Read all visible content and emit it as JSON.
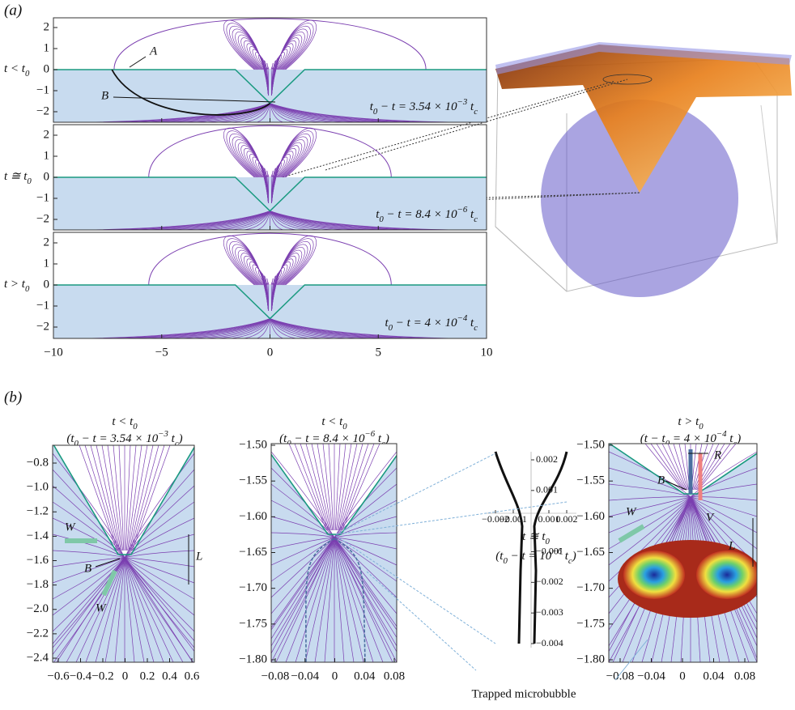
{
  "panel_a": {
    "label": "(a)",
    "rows": [
      {
        "condition": [
          "t < t",
          "0"
        ],
        "time": [
          "t",
          "0",
          " − t = 3.54 × 10",
          "−3",
          " t",
          "c"
        ]
      },
      {
        "condition": [
          "t ≅ t",
          "0"
        ],
        "time": [
          "t",
          "0",
          " − t = 8.4 × 10",
          "−6",
          " t",
          "c"
        ]
      },
      {
        "condition": [
          "t > t",
          "0"
        ],
        "time": [
          "t",
          "0",
          " − t = 4 × 10",
          "−4",
          " t",
          "c"
        ]
      }
    ],
    "yticks": [
      2,
      1,
      0,
      {
        "value": -1,
        "label": "−1"
      },
      {
        "value": -2,
        "label": "−2"
      }
    ],
    "xticks": [
      {
        "value": -10,
        "label": "−10"
      },
      {
        "value": -5,
        "label": "−5"
      },
      0,
      5,
      10
    ],
    "annotations": [
      "A",
      "B"
    ]
  },
  "panel_b": {
    "label": "(b)",
    "plots": [
      {
        "title": [
          "t < t",
          "0"
        ],
        "subtitle": [
          "(t",
          "0",
          " − t = 3.54 × 10",
          "−3",
          " t",
          "c",
          ")"
        ],
        "yticks": [
          {
            "value": -0.8,
            "label": "−0.8"
          },
          {
            "value": -1.0,
            "label": "−1.0"
          },
          {
            "value": -1.2,
            "label": "−1.2"
          },
          {
            "value": -1.4,
            "label": "−1.4"
          },
          {
            "value": -1.6,
            "label": "−1.6"
          },
          {
            "value": -1.8,
            "label": "−1.8"
          },
          {
            "value": -2.0,
            "label": "−2.0"
          },
          {
            "value": -2.2,
            "label": "−2.2"
          },
          {
            "value": -2.4,
            "label": "−2.4"
          }
        ],
        "xticks": [
          {
            "value": -0.6,
            "label": "−0.6"
          },
          {
            "value": -0.4,
            "label": "−0.4"
          },
          {
            "value": -0.2,
            "label": "−0.2"
          },
          0,
          0.2,
          0.4,
          0.6
        ],
        "annotations": [
          "W",
          "W",
          "B",
          "L"
        ]
      },
      {
        "title": [
          "t < t",
          "0"
        ],
        "subtitle": [
          "(t",
          "0",
          " − t = 8.4 × 10",
          "−6",
          " t",
          "c",
          ")"
        ],
        "yticks": [
          {
            "value": -1.5,
            "label": "−1.50"
          },
          {
            "value": -1.55,
            "label": "−1.55"
          },
          {
            "value": -1.6,
            "label": "−1.60"
          },
          {
            "value": -1.65,
            "label": "−1.65"
          },
          {
            "value": -1.7,
            "label": "−1.70"
          },
          {
            "value": -1.75,
            "label": "−1.75"
          },
          {
            "value": -1.8,
            "label": "−1.80"
          }
        ],
        "xticks": [
          {
            "value": -0.08,
            "label": "−0.08"
          },
          {
            "value": -0.04,
            "label": "−0.04"
          },
          0,
          0.04,
          0.08
        ]
      },
      {
        "title": [
          "t ≅ t",
          "0"
        ],
        "subtitle": [
          "(t",
          "0",
          " − t = 10",
          "−6",
          " t",
          "c",
          ")"
        ],
        "yticks": [
          0.002,
          0.001,
          {
            "value": -0.001,
            "label": "−0.001"
          },
          {
            "value": -0.002,
            "label": "−0.002"
          },
          {
            "value": -0.003,
            "label": "−0.003"
          },
          {
            "value": -0.004,
            "label": "−0.004"
          }
        ],
        "xticks": [
          {
            "value": -0.002,
            "label": "−0.002"
          },
          {
            "value": -0.001,
            "label": "−0.001"
          },
          0.001,
          0.002
        ]
      },
      {
        "title": [
          "t > t",
          "0"
        ],
        "subtitle": [
          "(t − t",
          "0",
          " = 4 × 10",
          "−4",
          " t",
          "c",
          ")"
        ],
        "yticks": [
          {
            "value": -1.5,
            "label": "−1.50"
          },
          {
            "value": -1.55,
            "label": "−1.55"
          },
          {
            "value": -1.6,
            "label": "−1.60"
          },
          {
            "value": -1.65,
            "label": "−1.65"
          },
          {
            "value": -1.7,
            "label": "−1.70"
          },
          {
            "value": -1.75,
            "label": "−1.75"
          },
          {
            "value": -1.8,
            "label": "−1.80"
          }
        ],
        "xticks": [
          {
            "value": -0.08,
            "label": "−0.08"
          },
          {
            "value": -0.04,
            "label": "−0.04"
          },
          0,
          0.04,
          0.08
        ],
        "annotations": [
          "R",
          "B",
          "V",
          "L",
          "W"
        ]
      }
    ],
    "note": "Trapped microbubble"
  }
}
